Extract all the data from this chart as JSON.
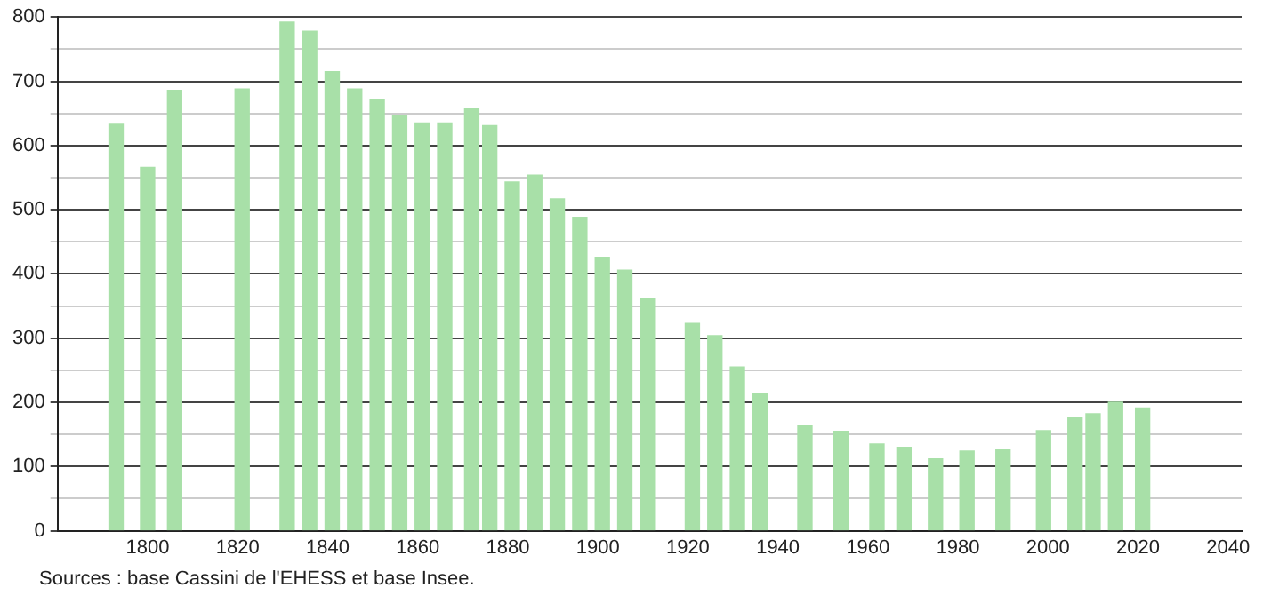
{
  "chart_data": {
    "type": "bar",
    "x": [
      1793,
      1800,
      1806,
      1821,
      1831,
      1836,
      1841,
      1846,
      1851,
      1856,
      1861,
      1866,
      1872,
      1876,
      1881,
      1886,
      1891,
      1896,
      1901,
      1906,
      1911,
      1921,
      1926,
      1931,
      1936,
      1946,
      1954,
      1962,
      1968,
      1975,
      1982,
      1990,
      1999,
      2006,
      2010,
      2015,
      2021
    ],
    "values": [
      633,
      566,
      686,
      688,
      792,
      778,
      715,
      688,
      671,
      647,
      635,
      635,
      657,
      631,
      543,
      554,
      517,
      488,
      426,
      406,
      362,
      323,
      304,
      255,
      213,
      164,
      155,
      135,
      130,
      112,
      124,
      127,
      156,
      177,
      182,
      200,
      191
    ],
    "color": "#a8e0a8",
    "xlim": [
      1780,
      2043
    ],
    "xticks": [
      1800,
      1820,
      1840,
      1860,
      1880,
      1900,
      1920,
      1940,
      1960,
      1980,
      2000,
      2020,
      2040
    ],
    "ylim": [
      0,
      800
    ],
    "yticks": [
      0,
      {
        "value": 50,
        "label": null
      },
      100,
      {
        "value": 150,
        "label": null
      },
      200,
      {
        "value": 250,
        "label": null
      },
      300,
      {
        "value": 350,
        "label": null
      },
      400,
      {
        "value": 450,
        "label": null
      },
      500,
      {
        "value": 550,
        "label": null
      },
      600,
      {
        "value": 650,
        "label": null
      },
      700,
      {
        "value": 750,
        "label": null
      },
      800
    ],
    "grid": "y",
    "annotations": [
      "Sources : base Cassini de l'EHESS et base Insee."
    ]
  }
}
